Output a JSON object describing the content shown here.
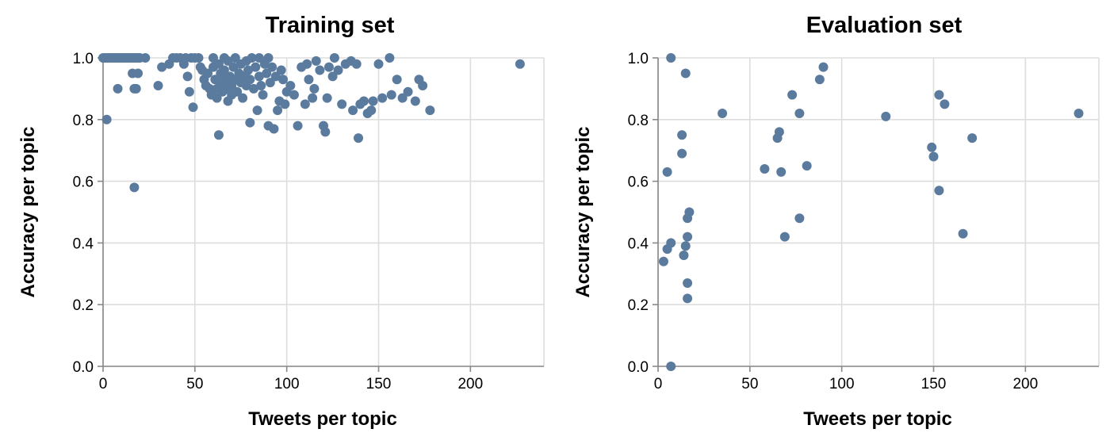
{
  "chart_data": [
    {
      "type": "scatter",
      "title": "Training set",
      "xlabel": "Tweets per topic",
      "ylabel": "Accuracy per topic",
      "xlim": [
        0,
        240
      ],
      "ylim": [
        0,
        1
      ],
      "xticks": [
        0,
        50,
        100,
        150,
        200
      ],
      "yticks": [
        0.0,
        0.2,
        0.4,
        0.6,
        0.8,
        1.0
      ],
      "xtick_labels": [
        "0",
        "50",
        "100",
        "150",
        "200"
      ],
      "ytick_labels": [
        "0.0",
        "0.2",
        "0.4",
        "0.6",
        "0.8",
        "1.0"
      ],
      "grid": true,
      "color": "#5b7b9e",
      "points": [
        [
          0,
          1.0
        ],
        [
          1,
          1.0
        ],
        [
          2,
          1.0
        ],
        [
          3,
          1.0
        ],
        [
          4,
          1.0
        ],
        [
          5,
          1.0
        ],
        [
          6,
          1.0
        ],
        [
          7,
          1.0
        ],
        [
          8,
          1.0
        ],
        [
          9,
          1.0
        ],
        [
          10,
          1.0
        ],
        [
          11,
          1.0
        ],
        [
          12,
          1.0
        ],
        [
          13,
          1.0
        ],
        [
          14,
          1.0
        ],
        [
          15,
          1.0
        ],
        [
          16,
          1.0
        ],
        [
          17,
          1.0
        ],
        [
          18,
          1.0
        ],
        [
          19,
          1.0
        ],
        [
          20,
          1.0
        ],
        [
          23,
          1.0
        ],
        [
          2,
          0.8
        ],
        [
          8,
          0.9
        ],
        [
          17,
          0.58
        ],
        [
          16,
          0.95
        ],
        [
          17,
          0.9
        ],
        [
          18,
          0.9
        ],
        [
          19,
          0.95
        ],
        [
          30,
          0.91
        ],
        [
          32,
          0.97
        ],
        [
          36,
          0.98
        ],
        [
          38,
          1.0
        ],
        [
          40,
          1.0
        ],
        [
          42,
          1.0
        ],
        [
          44,
          0.98
        ],
        [
          45,
          1.0
        ],
        [
          46,
          0.94
        ],
        [
          47,
          0.89
        ],
        [
          48,
          1.0
        ],
        [
          49,
          0.84
        ],
        [
          50,
          1.0
        ],
        [
          52,
          1.0
        ],
        [
          53,
          0.97
        ],
        [
          54,
          0.96
        ],
        [
          55,
          0.93
        ],
        [
          56,
          0.91
        ],
        [
          57,
          0.95
        ],
        [
          58,
          0.9
        ],
        [
          59,
          0.88
        ],
        [
          60,
          1.0
        ],
        [
          60,
          0.97
        ],
        [
          61,
          0.93
        ],
        [
          62,
          0.9
        ],
        [
          62,
          0.87
        ],
        [
          63,
          0.98
        ],
        [
          63,
          0.75
        ],
        [
          64,
          0.95
        ],
        [
          64,
          0.92
        ],
        [
          65,
          0.89
        ],
        [
          66,
          1.0
        ],
        [
          66,
          0.96
        ],
        [
          67,
          0.93
        ],
        [
          67,
          0.9
        ],
        [
          68,
          0.86
        ],
        [
          68,
          0.99
        ],
        [
          69,
          0.94
        ],
        [
          70,
          0.91
        ],
        [
          70,
          0.88
        ],
        [
          71,
          0.97
        ],
        [
          72,
          0.93
        ],
        [
          72,
          1.0
        ],
        [
          73,
          0.89
        ],
        [
          74,
          0.95
        ],
        [
          75,
          0.98
        ],
        [
          75,
          0.92
        ],
        [
          76,
          0.87
        ],
        [
          77,
          0.94
        ],
        [
          78,
          0.91
        ],
        [
          78,
          0.99
        ],
        [
          79,
          0.96
        ],
        [
          80,
          0.79
        ],
        [
          80,
          0.93
        ],
        [
          81,
          1.0
        ],
        [
          82,
          0.9
        ],
        [
          83,
          0.97
        ],
        [
          84,
          0.83
        ],
        [
          85,
          1.0
        ],
        [
          85,
          0.94
        ],
        [
          86,
          0.91
        ],
        [
          87,
          0.88
        ],
        [
          88,
          0.98
        ],
        [
          89,
          0.95
        ],
        [
          90,
          0.78
        ],
        [
          90,
          1.0
        ],
        [
          91,
          0.92
        ],
        [
          92,
          0.97
        ],
        [
          93,
          0.77
        ],
        [
          94,
          0.94
        ],
        [
          95,
          0.83
        ],
        [
          96,
          0.86
        ],
        [
          97,
          0.96
        ],
        [
          98,
          0.93
        ],
        [
          99,
          0.85
        ],
        [
          100,
          0.89
        ],
        [
          102,
          0.91
        ],
        [
          104,
          0.88
        ],
        [
          106,
          0.78
        ],
        [
          108,
          0.97
        ],
        [
          110,
          0.85
        ],
        [
          111,
          0.98
        ],
        [
          112,
          0.93
        ],
        [
          114,
          0.87
        ],
        [
          115,
          0.9
        ],
        [
          116,
          0.99
        ],
        [
          118,
          0.96
        ],
        [
          120,
          0.78
        ],
        [
          121,
          0.76
        ],
        [
          122,
          0.87
        ],
        [
          123,
          0.97
        ],
        [
          125,
          0.94
        ],
        [
          126,
          1.0
        ],
        [
          128,
          0.96
        ],
        [
          130,
          0.85
        ],
        [
          132,
          0.98
        ],
        [
          135,
          0.99
        ],
        [
          136,
          0.83
        ],
        [
          138,
          0.98
        ],
        [
          139,
          0.74
        ],
        [
          140,
          0.85
        ],
        [
          142,
          0.86
        ],
        [
          144,
          0.82
        ],
        [
          146,
          0.83
        ],
        [
          147,
          0.86
        ],
        [
          150,
          0.98
        ],
        [
          152,
          0.87
        ],
        [
          156,
          1.0
        ],
        [
          157,
          0.88
        ],
        [
          160,
          0.93
        ],
        [
          163,
          0.87
        ],
        [
          166,
          0.89
        ],
        [
          170,
          0.86
        ],
        [
          172,
          0.93
        ],
        [
          174,
          0.91
        ],
        [
          178,
          0.83
        ],
        [
          227,
          0.98
        ]
      ]
    },
    {
      "type": "scatter",
      "title": "Evaluation set",
      "xlabel": "Tweets per topic",
      "ylabel": "Accuracy per topic",
      "xlim": [
        0,
        240
      ],
      "ylim": [
        0,
        1
      ],
      "xticks": [
        0,
        50,
        100,
        150,
        200
      ],
      "yticks": [
        0.0,
        0.2,
        0.4,
        0.6,
        0.8,
        1.0
      ],
      "xtick_labels": [
        "0",
        "50",
        "100",
        "150",
        "200"
      ],
      "ytick_labels": [
        "0.0",
        "0.2",
        "0.4",
        "0.6",
        "0.8",
        "1.0"
      ],
      "grid": true,
      "color": "#5b7b9e",
      "points": [
        [
          3,
          0.34
        ],
        [
          5,
          0.38
        ],
        [
          5,
          0.63
        ],
        [
          7,
          0.4
        ],
        [
          7,
          1.0
        ],
        [
          7,
          0.0
        ],
        [
          13,
          0.75
        ],
        [
          13,
          0.69
        ],
        [
          14,
          0.36
        ],
        [
          15,
          0.39
        ],
        [
          15,
          0.95
        ],
        [
          16,
          0.42
        ],
        [
          16,
          0.48
        ],
        [
          16,
          0.27
        ],
        [
          17,
          0.5
        ],
        [
          16,
          0.22
        ],
        [
          35,
          0.82
        ],
        [
          58,
          0.64
        ],
        [
          65,
          0.74
        ],
        [
          66,
          0.76
        ],
        [
          67,
          0.63
        ],
        [
          69,
          0.42
        ],
        [
          73,
          0.88
        ],
        [
          77,
          0.48
        ],
        [
          77,
          0.82
        ],
        [
          81,
          0.65
        ],
        [
          88,
          0.93
        ],
        [
          90,
          0.97
        ],
        [
          124,
          0.81
        ],
        [
          149,
          0.71
        ],
        [
          150,
          0.68
        ],
        [
          153,
          0.88
        ],
        [
          153,
          0.57
        ],
        [
          156,
          0.85
        ],
        [
          166,
          0.43
        ],
        [
          171,
          0.74
        ],
        [
          229,
          0.82
        ]
      ]
    }
  ]
}
